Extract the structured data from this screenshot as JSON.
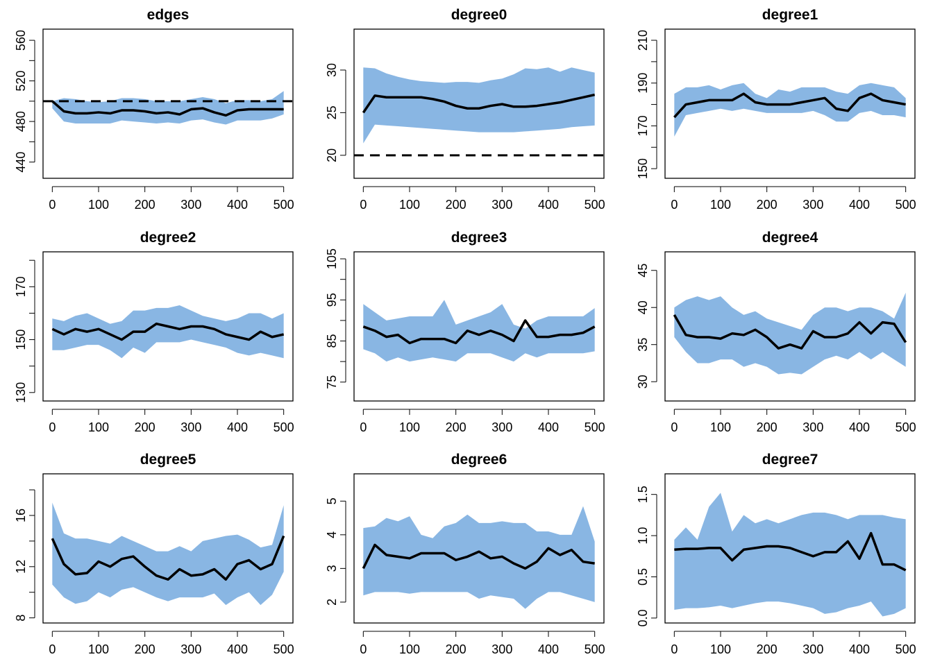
{
  "chart_data": [
    {
      "type": "line",
      "title": "edges",
      "x": [
        0,
        25,
        50,
        75,
        100,
        125,
        150,
        175,
        200,
        225,
        250,
        275,
        300,
        325,
        350,
        375,
        400,
        425,
        450,
        475,
        500
      ],
      "values": [
        500,
        490,
        488,
        488,
        489,
        488,
        491,
        491,
        490,
        488,
        489,
        487,
        492,
        493,
        489,
        486,
        491,
        492,
        492,
        492,
        492
      ],
      "band_lower": [
        493,
        480,
        478,
        478,
        478,
        478,
        481,
        480,
        479,
        478,
        479,
        478,
        481,
        482,
        479,
        477,
        481,
        481,
        481,
        483,
        487
      ],
      "band_upper": [
        500,
        503,
        502,
        500,
        499,
        500,
        503,
        503,
        502,
        500,
        500,
        500,
        502,
        504,
        502,
        498,
        501,
        501,
        500,
        502,
        510
      ],
      "target": 500,
      "color": "#000000",
      "band_color": "#89b6e3",
      "xlim": [
        -20,
        520
      ],
      "xticks": [
        0,
        100,
        200,
        300,
        400,
        500
      ],
      "ylim": [
        424,
        571
      ],
      "yticks": [
        440,
        480,
        520,
        560
      ],
      "minor_yticks": [
        460,
        500,
        540
      ]
    },
    {
      "type": "line",
      "title": "degree0",
      "x": [
        0,
        25,
        50,
        75,
        100,
        125,
        150,
        175,
        200,
        225,
        250,
        275,
        300,
        325,
        350,
        375,
        400,
        425,
        450,
        475,
        500
      ],
      "values": [
        25,
        27,
        26.8,
        26.8,
        26.8,
        26.8,
        26.6,
        26.3,
        25.8,
        25.5,
        25.5,
        25.8,
        26,
        25.7,
        25.7,
        25.8,
        26,
        26.2,
        26.5,
        26.8,
        27.1
      ],
      "band_lower": [
        21.4,
        23.6,
        23.5,
        23.4,
        23.3,
        23.2,
        23.1,
        23,
        22.9,
        22.8,
        22.7,
        22.7,
        22.7,
        22.7,
        22.8,
        22.9,
        23,
        23.1,
        23.3,
        23.4,
        23.5
      ],
      "band_upper": [
        30.3,
        30.2,
        29.6,
        29.2,
        28.9,
        28.7,
        28.6,
        28.5,
        28.6,
        28.6,
        28.5,
        28.8,
        29,
        29.5,
        30.2,
        30.1,
        30.3,
        29.8,
        30.3,
        30,
        29.7
      ],
      "target": 20,
      "color": "#000000",
      "band_color": "#89b6e3",
      "xlim": [
        -20,
        520
      ],
      "xticks": [
        0,
        100,
        200,
        300,
        400,
        500
      ],
      "ylim": [
        17.3,
        34.8
      ],
      "yticks": [
        20,
        25,
        30
      ],
      "minor_yticks": []
    },
    {
      "type": "line",
      "title": "degree1",
      "x": [
        0,
        25,
        50,
        75,
        100,
        125,
        150,
        175,
        200,
        225,
        250,
        275,
        300,
        325,
        350,
        375,
        400,
        425,
        450,
        475,
        500
      ],
      "values": [
        174,
        180,
        181,
        182,
        182,
        182,
        185,
        181,
        180,
        180,
        180,
        181,
        182,
        183,
        178,
        177,
        183,
        185,
        182,
        181,
        180
      ],
      "band_lower": [
        165,
        175,
        176,
        177,
        178,
        177,
        178,
        177,
        176,
        176,
        176,
        176,
        177,
        175,
        172,
        172,
        176,
        177,
        175,
        175,
        174
      ],
      "band_upper": [
        185,
        188,
        188,
        189,
        187,
        189,
        190,
        185,
        183,
        187,
        186,
        188,
        188,
        188,
        186,
        185,
        189,
        190,
        189,
        188,
        183
      ],
      "color": "#000000",
      "band_color": "#89b6e3",
      "xlim": [
        -20,
        520
      ],
      "xticks": [
        0,
        100,
        200,
        300,
        400,
        500
      ],
      "ylim": [
        145.5,
        215.2
      ],
      "yticks": [
        150,
        170,
        190,
        210
      ],
      "minor_yticks": [
        160,
        180,
        200
      ]
    },
    {
      "type": "line",
      "title": "degree2",
      "x": [
        0,
        25,
        50,
        75,
        100,
        125,
        150,
        175,
        200,
        225,
        250,
        275,
        300,
        325,
        350,
        375,
        400,
        425,
        450,
        475,
        500
      ],
      "values": [
        154,
        152,
        154,
        153,
        154,
        152,
        150,
        153,
        153,
        156,
        155,
        154,
        155,
        155,
        154,
        152,
        151,
        150,
        153,
        151,
        152
      ],
      "band_lower": [
        146,
        146,
        147,
        148,
        148,
        146,
        143,
        147,
        145,
        149,
        149,
        149,
        150,
        149,
        148,
        147,
        145,
        144,
        145,
        144,
        143
      ],
      "band_upper": [
        158,
        157,
        159,
        160,
        158,
        156,
        157,
        161,
        161,
        162,
        162,
        163,
        161,
        159,
        158,
        157,
        158,
        160,
        160,
        158,
        160
      ],
      "color": "#000000",
      "band_color": "#89b6e3",
      "xlim": [
        -20,
        520
      ],
      "xticks": [
        0,
        100,
        200,
        300,
        400,
        500
      ],
      "ylim": [
        126.8,
        183.2
      ],
      "yticks": [
        130,
        150,
        170
      ],
      "minor_yticks": [
        140,
        160,
        180
      ]
    },
    {
      "type": "line",
      "title": "degree3",
      "x": [
        0,
        25,
        50,
        75,
        100,
        125,
        150,
        175,
        200,
        225,
        250,
        275,
        300,
        325,
        350,
        375,
        400,
        425,
        450,
        475,
        500
      ],
      "values": [
        88.5,
        87.5,
        86,
        86.5,
        84.5,
        85.5,
        85.5,
        85.5,
        84.5,
        87.5,
        86.5,
        87.5,
        86.5,
        85,
        90,
        86,
        86,
        86.5,
        86.5,
        87,
        88.5
      ],
      "band_lower": [
        83,
        82,
        80,
        81,
        80,
        80.5,
        81,
        80.5,
        80,
        82,
        82,
        82,
        81,
        80,
        82,
        81,
        82,
        82,
        82,
        82,
        82.5
      ],
      "band_upper": [
        94,
        92,
        90,
        90.5,
        91,
        91,
        91,
        95,
        89,
        90,
        91,
        92,
        94,
        89,
        88,
        90,
        91,
        91,
        91,
        91,
        93
      ],
      "color": "#000000",
      "band_color": "#89b6e3",
      "xlim": [
        -20,
        520
      ],
      "xticks": [
        0,
        100,
        200,
        300,
        400,
        500
      ],
      "ylim": [
        70.4,
        106.7
      ],
      "yticks": [
        75,
        85,
        95,
        105
      ],
      "minor_yticks": [
        80,
        90,
        100
      ]
    },
    {
      "type": "line",
      "title": "degree4",
      "x": [
        0,
        25,
        50,
        75,
        100,
        125,
        150,
        175,
        200,
        225,
        250,
        275,
        300,
        325,
        350,
        375,
        400,
        425,
        450,
        475,
        500
      ],
      "values": [
        39,
        36.3,
        36,
        36,
        35.8,
        36.5,
        36.3,
        37,
        36,
        34.5,
        35,
        34.5,
        36.8,
        36,
        36,
        36.5,
        38,
        36.5,
        38,
        37.8,
        35.3
      ],
      "band_lower": [
        36,
        34,
        32.5,
        32.5,
        33,
        33,
        32,
        32.5,
        32,
        31,
        31.2,
        31,
        32,
        33,
        33.5,
        33,
        34,
        33,
        34,
        33,
        32
      ],
      "band_upper": [
        40,
        41,
        41.5,
        41,
        41.5,
        40,
        39,
        39.5,
        38.5,
        38,
        37.5,
        37,
        39,
        40,
        40,
        39.5,
        40,
        40,
        39.5,
        38.5,
        42
      ],
      "color": "#000000",
      "band_color": "#89b6e3",
      "xlim": [
        -20,
        520
      ],
      "xticks": [
        0,
        100,
        200,
        300,
        400,
        500
      ],
      "ylim": [
        27.4,
        47.5
      ],
      "yticks": [
        30,
        35,
        40,
        45
      ],
      "minor_yticks": []
    },
    {
      "type": "line",
      "title": "degree5",
      "x": [
        0,
        25,
        50,
        75,
        100,
        125,
        150,
        175,
        200,
        225,
        250,
        275,
        300,
        325,
        350,
        375,
        400,
        425,
        450,
        475,
        500
      ],
      "values": [
        14.2,
        12.2,
        11.4,
        11.5,
        12.4,
        12,
        12.6,
        12.8,
        12,
        11.3,
        11,
        11.8,
        11.3,
        11.4,
        11.8,
        11,
        12.2,
        12.5,
        11.8,
        12.2,
        14.4
      ],
      "band_lower": [
        10.6,
        9.6,
        9.1,
        9.3,
        10,
        9.6,
        10.2,
        10.4,
        10,
        9.6,
        9.3,
        9.6,
        9.6,
        9.6,
        9.9,
        9,
        9.6,
        10,
        9,
        9.8,
        11.6
      ],
      "band_upper": [
        17,
        14.6,
        14.2,
        14.2,
        14,
        13.8,
        14.4,
        14,
        13.6,
        13.2,
        13.2,
        13.6,
        13.2,
        14,
        14.2,
        14.4,
        14.5,
        14.1,
        13.5,
        13.7,
        16.8
      ],
      "color": "#000000",
      "band_color": "#89b6e3",
      "xlim": [
        -20,
        520
      ],
      "xticks": [
        0,
        100,
        200,
        300,
        400,
        500
      ],
      "ylim": [
        7.6,
        19.25
      ],
      "yticks": [
        8,
        12,
        16
      ],
      "minor_yticks": [
        10,
        14,
        18
      ]
    },
    {
      "type": "line",
      "title": "degree6",
      "x": [
        0,
        25,
        50,
        75,
        100,
        125,
        150,
        175,
        200,
        225,
        250,
        275,
        300,
        325,
        350,
        375,
        400,
        425,
        450,
        475,
        500
      ],
      "values": [
        3,
        3.7,
        3.4,
        3.35,
        3.3,
        3.45,
        3.45,
        3.45,
        3.25,
        3.35,
        3.5,
        3.3,
        3.35,
        3.15,
        3,
        3.2,
        3.6,
        3.4,
        3.55,
        3.2,
        3.15
      ],
      "band_lower": [
        2.2,
        2.3,
        2.3,
        2.3,
        2.25,
        2.3,
        2.3,
        2.3,
        2.3,
        2.3,
        2.1,
        2.2,
        2.15,
        2.1,
        1.8,
        2.1,
        2.3,
        2.3,
        2.2,
        2.1,
        2
      ],
      "band_upper": [
        4.2,
        4.25,
        4.5,
        4.4,
        4.55,
        4,
        3.9,
        4.25,
        4.35,
        4.6,
        4.35,
        4.35,
        4.4,
        4.35,
        4.35,
        4.1,
        4.1,
        4,
        4,
        4.85,
        3.8
      ],
      "color": "#000000",
      "band_color": "#89b6e3",
      "xlim": [
        -20,
        520
      ],
      "xticks": [
        0,
        100,
        200,
        300,
        400,
        500
      ],
      "ylim": [
        1.38,
        5.81
      ],
      "yticks": [
        2,
        3,
        4,
        5
      ],
      "minor_yticks": []
    },
    {
      "type": "line",
      "title": "degree7",
      "x": [
        0,
        25,
        50,
        75,
        100,
        125,
        150,
        175,
        200,
        225,
        250,
        275,
        300,
        325,
        350,
        375,
        400,
        425,
        450,
        475,
        500
      ],
      "values": [
        0.83,
        0.84,
        0.84,
        0.85,
        0.85,
        0.7,
        0.83,
        0.85,
        0.87,
        0.87,
        0.85,
        0.8,
        0.75,
        0.8,
        0.8,
        0.93,
        0.72,
        1.03,
        0.65,
        0.65,
        0.58
      ],
      "band_lower": [
        0.1,
        0.12,
        0.12,
        0.13,
        0.15,
        0.12,
        0.15,
        0.18,
        0.2,
        0.2,
        0.18,
        0.15,
        0.12,
        0.05,
        0.07,
        0.12,
        0.15,
        0.2,
        0.02,
        0.05,
        0.12
      ],
      "band_upper": [
        0.95,
        1.1,
        0.95,
        1.35,
        1.52,
        1.05,
        1.25,
        1.15,
        1.2,
        1.15,
        1.2,
        1.25,
        1.28,
        1.28,
        1.25,
        1.2,
        1.25,
        1.25,
        1.25,
        1.22,
        1.2
      ],
      "color": "#000000",
      "band_color": "#89b6e3",
      "xlim": [
        -20,
        520
      ],
      "xticks": [
        0,
        100,
        200,
        300,
        400,
        500
      ],
      "ylim": [
        -0.06,
        1.75
      ],
      "yticks": [
        {
          "value": 0,
          "label": "0.0"
        },
        0.5,
        {
          "value": 1,
          "label": "1.0"
        },
        1.5
      ],
      "minor_yticks": []
    }
  ]
}
